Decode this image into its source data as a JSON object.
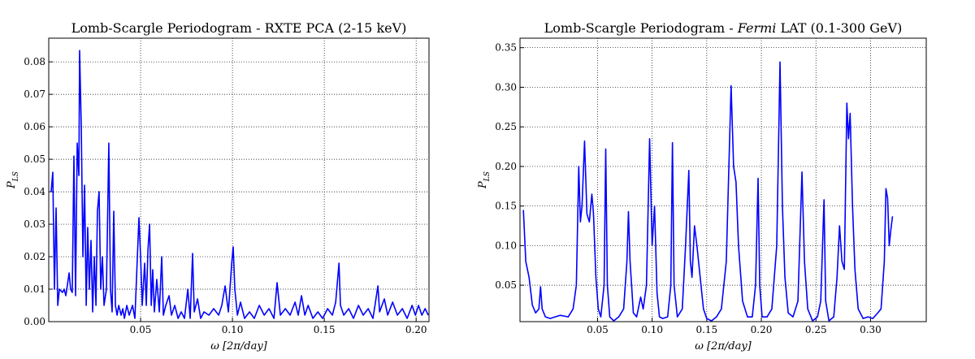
{
  "chart_data": [
    {
      "type": "line",
      "title": "Lomb-Scargle Periodogram - RXTE PCA (2-15 keV)",
      "xlabel": "ω [2π/day]",
      "ylabel": [
        "P",
        "LS"
      ],
      "xlim": [
        0,
        0.207
      ],
      "ylim": [
        0,
        0.0873
      ],
      "xticks": [
        0.05,
        {
          "value": 0.1,
          "label": "0.10"
        },
        0.15,
        {
          "value": 0.2,
          "label": "0.20"
        }
      ],
      "yticks": [
        {
          "value": 0,
          "label": "0.00"
        },
        0.01,
        0.02,
        0.03,
        0.04,
        0.05,
        0.06,
        0.07,
        0.08
      ],
      "grid": true,
      "x": [
        0.0013,
        0.0022,
        0.0031,
        0.004,
        0.0049,
        0.0058,
        0.0075,
        0.0084,
        0.0093,
        0.0111,
        0.0119,
        0.0128,
        0.0137,
        0.0146,
        0.0155,
        0.0164,
        0.0168,
        0.0177,
        0.0186,
        0.0195,
        0.0204,
        0.0212,
        0.0221,
        0.023,
        0.0239,
        0.0248,
        0.0257,
        0.0265,
        0.0274,
        0.0283,
        0.0292,
        0.0301,
        0.0314,
        0.0327,
        0.0336,
        0.0345,
        0.0354,
        0.0363,
        0.0372,
        0.0381,
        0.0394,
        0.0403,
        0.0412,
        0.0425,
        0.0438,
        0.0456,
        0.0469,
        0.0491,
        0.05,
        0.0509,
        0.0522,
        0.0531,
        0.054,
        0.0549,
        0.0558,
        0.0566,
        0.0575,
        0.0588,
        0.0602,
        0.0615,
        0.0624,
        0.0637,
        0.0655,
        0.0668,
        0.0686,
        0.0704,
        0.0721,
        0.0739,
        0.0757,
        0.077,
        0.0783,
        0.0792,
        0.081,
        0.0827,
        0.0845,
        0.0872,
        0.0898,
        0.0925,
        0.0942,
        0.096,
        0.0978,
        0.0996,
        0.1004,
        0.1013,
        0.1027,
        0.1044,
        0.1066,
        0.1093,
        0.1119,
        0.1146,
        0.1173,
        0.1199,
        0.1226,
        0.1243,
        0.1261,
        0.1288,
        0.1314,
        0.1341,
        0.1358,
        0.1376,
        0.1394,
        0.1412,
        0.1438,
        0.1465,
        0.1491,
        0.1518,
        0.1544,
        0.1562,
        0.158,
        0.1588,
        0.1606,
        0.1633,
        0.1659,
        0.1686,
        0.1712,
        0.1739,
        0.1765,
        0.1792,
        0.1801,
        0.1827,
        0.1845,
        0.1872,
        0.1898,
        0.1925,
        0.1951,
        0.1978,
        0.1996,
        0.2013,
        0.2031,
        0.2049,
        0.2066
      ],
      "series": [
        {
          "color": "#0000ff",
          "values": [
            0.04,
            0.046,
            0.01,
            0.035,
            0.005,
            0.01,
            0.009,
            0.01,
            0.008,
            0.015,
            0.01,
            0.009,
            0.051,
            0.008,
            0.055,
            0.045,
            0.0835,
            0.06,
            0.02,
            0.042,
            0.005,
            0.029,
            0.01,
            0.025,
            0.003,
            0.02,
            0.005,
            0.034,
            0.04,
            0.01,
            0.02,
            0.005,
            0.01,
            0.055,
            0.01,
            0.003,
            0.034,
            0.005,
            0.002,
            0.005,
            0.002,
            0.004,
            0.001,
            0.005,
            0.002,
            0.005,
            0.001,
            0.032,
            0.02,
            0.005,
            0.018,
            0.005,
            0.022,
            0.03,
            0.005,
            0.016,
            0.003,
            0.013,
            0.003,
            0.02,
            0.002,
            0.005,
            0.008,
            0.002,
            0.005,
            0.001,
            0.003,
            0.001,
            0.01,
            0.001,
            0.021,
            0.003,
            0.007,
            0.001,
            0.003,
            0.002,
            0.004,
            0.002,
            0.005,
            0.011,
            0.003,
            0.018,
            0.023,
            0.01,
            0.002,
            0.006,
            0.001,
            0.003,
            0.001,
            0.005,
            0.002,
            0.004,
            0.001,
            0.012,
            0.002,
            0.004,
            0.002,
            0.006,
            0.002,
            0.008,
            0.002,
            0.005,
            0.001,
            0.003,
            0.001,
            0.004,
            0.002,
            0.006,
            0.018,
            0.005,
            0.002,
            0.004,
            0.001,
            0.005,
            0.002,
            0.004,
            0.001,
            0.011,
            0.003,
            0.007,
            0.002,
            0.006,
            0.002,
            0.004,
            0.001,
            0.005,
            0.002,
            0.005,
            0.002,
            0.004,
            0.002
          ]
        }
      ]
    },
    {
      "type": "line",
      "title": [
        "Lomb-Scargle Periodogram - ",
        "Fermi",
        " LAT (0.1-300 GeV)"
      ],
      "xlabel": "ω [2π/day]",
      "ylabel": [
        "P",
        "LS"
      ],
      "xlim": [
        -0.021,
        0.351
      ],
      "ylim": [
        0.004,
        0.362
      ],
      "xticks": [
        0.05,
        {
          "value": 0.1,
          "label": "0.10"
        },
        0.15,
        {
          "value": 0.2,
          "label": "0.20"
        },
        0.25,
        {
          "value": 0.3,
          "label": "0.30"
        }
      ],
      "yticks": [
        0.05,
        {
          "value": 0.1,
          "label": "0.10"
        },
        0.15,
        {
          "value": 0.2,
          "label": "0.20"
        },
        0.25,
        {
          "value": 0.3,
          "label": "0.30"
        },
        0.35
      ],
      "grid": true,
      "x": [
        -0.0179,
        -0.0157,
        -0.0127,
        -0.0097,
        -0.0067,
        -0.0037,
        -0.0022,
        -0.0007,
        0.0023,
        0.0067,
        0.0112,
        0.0157,
        0.0231,
        0.0276,
        0.0306,
        0.0328,
        0.0343,
        0.0358,
        0.0381,
        0.0403,
        0.0425,
        0.0448,
        0.0463,
        0.0485,
        0.0507,
        0.053,
        0.056,
        0.0575,
        0.059,
        0.0612,
        0.0649,
        0.0694,
        0.0739,
        0.0769,
        0.0783,
        0.0798,
        0.0828,
        0.0858,
        0.0895,
        0.0918,
        0.0948,
        0.0977,
        0.1,
        0.1022,
        0.1045,
        0.1067,
        0.1097,
        0.1142,
        0.1171,
        0.1186,
        0.1201,
        0.1231,
        0.1276,
        0.1306,
        0.1336,
        0.135,
        0.1365,
        0.1388,
        0.141,
        0.144,
        0.147,
        0.15,
        0.1544,
        0.1589,
        0.1634,
        0.1679,
        0.1723,
        0.1746,
        0.1768,
        0.1791,
        0.1828,
        0.1873,
        0.1917,
        0.1947,
        0.197,
        0.1985,
        0.2007,
        0.2052,
        0.2096,
        0.2141,
        0.2171,
        0.2193,
        0.2216,
        0.2246,
        0.229,
        0.2335,
        0.2372,
        0.2395,
        0.2425,
        0.2469,
        0.2514,
        0.2544,
        0.2574,
        0.2589,
        0.2619,
        0.2663,
        0.2693,
        0.2716,
        0.2738,
        0.276,
        0.2783,
        0.2798,
        0.2813,
        0.2835,
        0.2857,
        0.2887,
        0.2932,
        0.2977,
        0.3021,
        0.3066,
        0.3096,
        0.3126,
        0.3141,
        0.3156,
        0.3171,
        0.3186,
        0.3201
      ],
      "series": [
        {
          "color": "#0000ff",
          "values": [
            0.145,
            0.08,
            0.06,
            0.025,
            0.015,
            0.02,
            0.048,
            0.02,
            0.01,
            0.008,
            0.01,
            0.012,
            0.01,
            0.02,
            0.05,
            0.2,
            0.13,
            0.15,
            0.232,
            0.14,
            0.13,
            0.165,
            0.14,
            0.06,
            0.02,
            0.01,
            0.05,
            0.222,
            0.05,
            0.01,
            0.005,
            0.01,
            0.02,
            0.08,
            0.143,
            0.08,
            0.015,
            0.01,
            0.035,
            0.02,
            0.05,
            0.235,
            0.1,
            0.15,
            0.04,
            0.01,
            0.008,
            0.01,
            0.05,
            0.23,
            0.05,
            0.01,
            0.02,
            0.1,
            0.195,
            0.08,
            0.06,
            0.125,
            0.1,
            0.06,
            0.02,
            0.008,
            0.005,
            0.01,
            0.02,
            0.08,
            0.302,
            0.2,
            0.18,
            0.1,
            0.03,
            0.01,
            0.01,
            0.05,
            0.185,
            0.05,
            0.01,
            0.01,
            0.02,
            0.1,
            0.332,
            0.15,
            0.06,
            0.015,
            0.01,
            0.03,
            0.193,
            0.08,
            0.02,
            0.005,
            0.01,
            0.03,
            0.158,
            0.03,
            0.005,
            0.01,
            0.06,
            0.125,
            0.08,
            0.07,
            0.28,
            0.235,
            0.267,
            0.15,
            0.07,
            0.02,
            0.008,
            0.01,
            0.008,
            0.015,
            0.02,
            0.08,
            0.172,
            0.16,
            0.1,
            0.12,
            0.137
          ]
        }
      ]
    }
  ]
}
